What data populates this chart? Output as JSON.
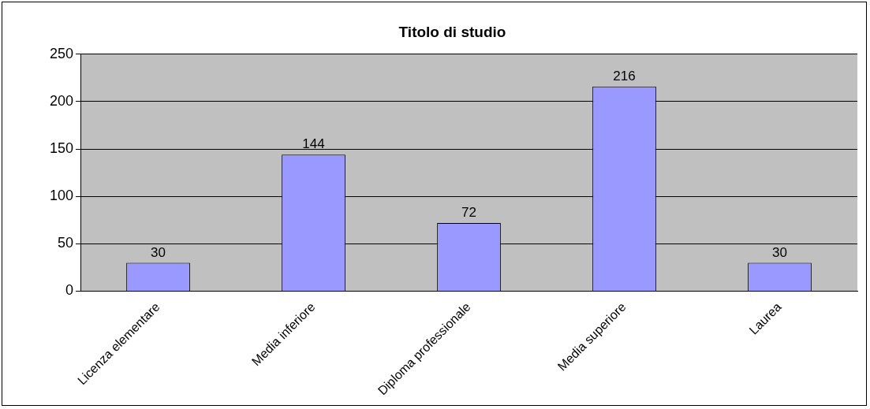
{
  "chart_data": {
    "type": "bar",
    "title": "Titolo di studio",
    "categories": [
      "Licenza elementare",
      "Media inferiore",
      "Diploma professionale",
      "Media superiore",
      "Laurea"
    ],
    "values": [
      30,
      144,
      72,
      216,
      30
    ],
    "color": "#9999ff",
    "ylim": [
      0,
      250
    ],
    "yticks": [
      0,
      50,
      100,
      150,
      200,
      250
    ],
    "grid": "y",
    "data_labels": true,
    "legend": false
  }
}
